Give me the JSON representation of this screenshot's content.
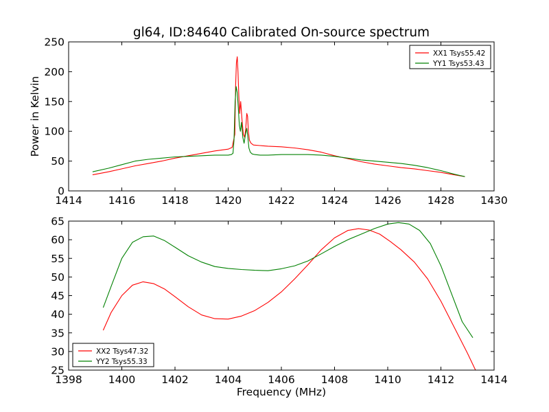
{
  "figure": {
    "title": "gl64, ID:84640 Calibrated On-source spectrum"
  },
  "chart_data": [
    {
      "type": "line",
      "title": "gl64, ID:84640 Calibrated On-source spectrum",
      "xlabel": "",
      "ylabel": "Power in Kelvin",
      "xlim": [
        1414,
        1430
      ],
      "ylim": [
        0,
        250
      ],
      "xticks": [
        "1414",
        "1416",
        "1418",
        "1420",
        "1422",
        "1424",
        "1426",
        "1428",
        "1430"
      ],
      "yticks": [
        "0",
        "50",
        "100",
        "150",
        "200",
        "250"
      ],
      "grid": false,
      "legend": "top-right",
      "series": [
        {
          "name": "XX1 Tsys55.42",
          "color": "#ff0000",
          "x": [
            1414.9,
            1415.5,
            1416.0,
            1416.5,
            1417.0,
            1417.5,
            1418.0,
            1418.5,
            1419.0,
            1419.5,
            1420.0,
            1420.15,
            1420.25,
            1420.28,
            1420.31,
            1420.34,
            1420.37,
            1420.4,
            1420.43,
            1420.47,
            1420.52,
            1420.57,
            1420.62,
            1420.66,
            1420.7,
            1420.73,
            1420.76,
            1420.8,
            1420.86,
            1420.95,
            1421.2,
            1421.5,
            1422.0,
            1422.5,
            1423.0,
            1423.5,
            1424.0,
            1424.5,
            1425.0,
            1425.5,
            1426.0,
            1426.5,
            1427.0,
            1427.5,
            1428.0,
            1428.5,
            1428.9
          ],
          "y": [
            27,
            32,
            37,
            42,
            46,
            50,
            55,
            59,
            63,
            67,
            70,
            73,
            95,
            175,
            215,
            225,
            200,
            160,
            130,
            150,
            120,
            95,
            90,
            105,
            130,
            125,
            100,
            85,
            80,
            77,
            76,
            75,
            74,
            72,
            69,
            65,
            59,
            54,
            49,
            45,
            42,
            39,
            37,
            34,
            31,
            27,
            24
          ]
        },
        {
          "name": "YY1 Tsys53.43",
          "color": "#008000",
          "x": [
            1414.9,
            1415.5,
            1416.0,
            1416.5,
            1417.0,
            1417.5,
            1418.0,
            1418.5,
            1419.0,
            1419.5,
            1420.0,
            1420.12,
            1420.18,
            1420.22,
            1420.26,
            1420.3,
            1420.34,
            1420.38,
            1420.42,
            1420.46,
            1420.5,
            1420.55,
            1420.6,
            1420.65,
            1420.7,
            1420.74,
            1420.78,
            1420.83,
            1420.9,
            1421.0,
            1421.2,
            1421.5,
            1422.0,
            1422.5,
            1423.0,
            1423.5,
            1424.0,
            1424.5,
            1425.0,
            1425.5,
            1426.0,
            1426.5,
            1427.0,
            1427.5,
            1428.0,
            1428.5,
            1428.9
          ],
          "y": [
            32,
            38,
            44,
            50,
            53,
            55,
            57,
            58,
            59,
            60,
            60,
            61,
            63,
            85,
            150,
            175,
            165,
            140,
            110,
            100,
            115,
            90,
            80,
            95,
            105,
            90,
            72,
            65,
            62,
            61,
            60,
            60,
            61,
            61,
            61,
            60,
            58,
            55,
            52,
            50,
            48,
            46,
            43,
            39,
            34,
            28,
            24
          ]
        }
      ]
    },
    {
      "type": "line",
      "title": "",
      "xlabel": "Frequency (MHz)",
      "ylabel": "",
      "xlim": [
        1398,
        1414
      ],
      "ylim": [
        25,
        65
      ],
      "xticks": [
        "1398",
        "1400",
        "1402",
        "1404",
        "1406",
        "1408",
        "1410",
        "1412",
        "1414"
      ],
      "yticks": [
        "25",
        "30",
        "35",
        "40",
        "45",
        "50",
        "55",
        "60",
        "65"
      ],
      "grid": false,
      "legend": "bottom-left",
      "series": [
        {
          "name": "XX2 Tsys47.32",
          "color": "#ff0000",
          "x": [
            1399.3,
            1399.6,
            1400.0,
            1400.4,
            1400.8,
            1401.2,
            1401.6,
            1402.0,
            1402.5,
            1403.0,
            1403.5,
            1404.0,
            1404.5,
            1405.0,
            1405.5,
            1406.0,
            1406.5,
            1407.0,
            1407.5,
            1408.0,
            1408.5,
            1408.9,
            1409.3,
            1409.7,
            1410.1,
            1410.5,
            1411.0,
            1411.5,
            1412.0,
            1412.5,
            1413.0,
            1413.3
          ],
          "y": [
            35.7,
            40.5,
            45.0,
            47.8,
            48.7,
            48.2,
            46.8,
            44.7,
            42.0,
            39.8,
            38.8,
            38.7,
            39.5,
            41.0,
            43.2,
            46.0,
            49.5,
            53.3,
            57.3,
            60.5,
            62.5,
            63.0,
            62.6,
            61.5,
            59.5,
            57.3,
            54.0,
            49.5,
            43.5,
            36.5,
            29.5,
            25.0
          ]
        },
        {
          "name": "YY2 Tsys55.33",
          "color": "#008000",
          "x": [
            1399.3,
            1399.6,
            1400.0,
            1400.4,
            1400.8,
            1401.2,
            1401.6,
            1402.0,
            1402.5,
            1403.0,
            1403.5,
            1404.0,
            1404.5,
            1405.0,
            1405.5,
            1406.0,
            1406.5,
            1407.0,
            1407.5,
            1408.0,
            1408.5,
            1409.0,
            1409.5,
            1410.0,
            1410.4,
            1410.8,
            1411.2,
            1411.6,
            1412.0,
            1412.4,
            1412.8,
            1413.2
          ],
          "y": [
            41.8,
            47.5,
            55.0,
            59.3,
            60.8,
            61.0,
            59.8,
            58.0,
            55.7,
            54.0,
            52.8,
            52.3,
            52.0,
            51.8,
            51.7,
            52.2,
            53.0,
            54.3,
            56.2,
            58.2,
            60.0,
            61.5,
            63.0,
            64.2,
            64.6,
            64.2,
            62.5,
            59.0,
            53.0,
            45.5,
            38.0,
            33.7
          ]
        }
      ]
    }
  ]
}
